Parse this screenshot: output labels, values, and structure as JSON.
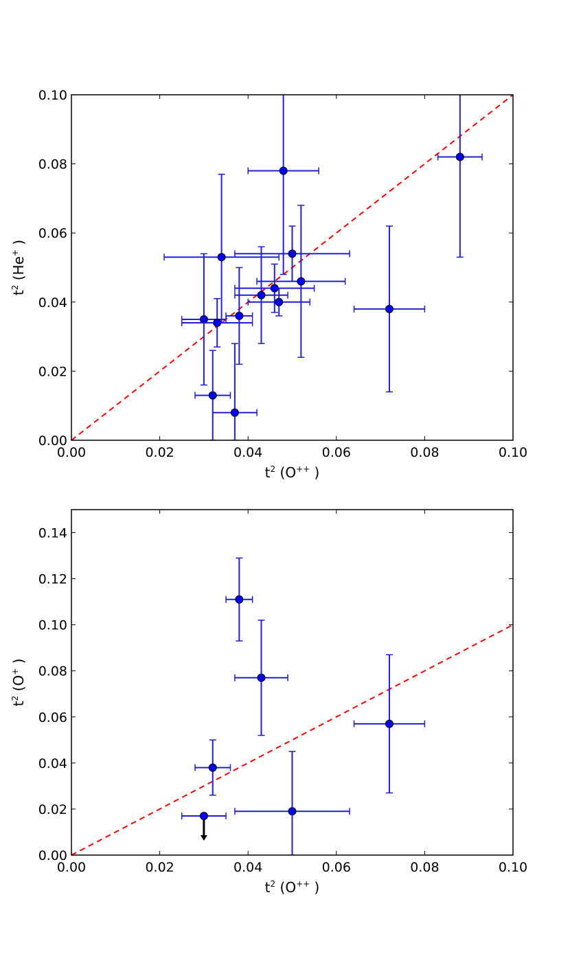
{
  "colors": {
    "points": "#0000ff",
    "errorbars": "#1f1fd6",
    "one_to_one": "#ff0000",
    "upper_limit": "#000000"
  },
  "chart_data": [
    {
      "type": "scatter",
      "xlabel": {
        "base": "t",
        "exp": "2",
        "species": "O",
        "charge": "++"
      },
      "ylabel": {
        "base": "t",
        "exp": "2",
        "species": "He",
        "charge": "+"
      },
      "xlim": [
        0.0,
        0.1
      ],
      "ylim": [
        0.0,
        0.1
      ],
      "xticks": [
        "0.00",
        "0.02",
        "0.04",
        "0.06",
        "0.08",
        "0.10"
      ],
      "yticks": [
        "0.00",
        "0.02",
        "0.04",
        "0.06",
        "0.08",
        "0.10"
      ],
      "reference_line": {
        "style": "dashed",
        "slope": 1,
        "intercept": 0
      },
      "points": [
        {
          "x": 0.03,
          "y": 0.035,
          "xerr": [
            0.005,
            0.005
          ],
          "yerr": [
            0.019,
            0.019
          ]
        },
        {
          "x": 0.032,
          "y": 0.013,
          "xerr": [
            0.004,
            0.004
          ],
          "yerr": [
            0.013,
            0.013
          ]
        },
        {
          "x": 0.033,
          "y": 0.034,
          "xerr": [
            0.008,
            0.008
          ],
          "yerr": [
            0.007,
            0.007
          ]
        },
        {
          "x": 0.034,
          "y": 0.053,
          "xerr": [
            0.013,
            0.013
          ],
          "yerr": [
            0.019,
            0.024
          ]
        },
        {
          "x": 0.037,
          "y": 0.008,
          "xerr": [
            0.005,
            0.005
          ],
          "yerr": [
            0.008,
            0.02
          ]
        },
        {
          "x": 0.038,
          "y": 0.036,
          "xerr": [
            0.003,
            0.003
          ],
          "yerr": [
            0.014,
            0.014
          ]
        },
        {
          "x": 0.043,
          "y": 0.042,
          "xerr": [
            0.006,
            0.006
          ],
          "yerr": [
            0.014,
            0.014
          ]
        },
        {
          "x": 0.046,
          "y": 0.044,
          "xerr": [
            0.009,
            0.009
          ],
          "yerr": [
            0.007,
            0.007
          ]
        },
        {
          "x": 0.047,
          "y": 0.04,
          "xerr": [
            0.007,
            0.007
          ],
          "yerr": [
            0.004,
            0.004
          ]
        },
        {
          "x": 0.048,
          "y": 0.078,
          "xerr": [
            0.008,
            0.008
          ],
          "yerr": [
            0.03,
            0.03
          ]
        },
        {
          "x": 0.05,
          "y": 0.054,
          "xerr": [
            0.013,
            0.013
          ],
          "yerr": [
            0.008,
            0.008
          ]
        },
        {
          "x": 0.052,
          "y": 0.046,
          "xerr": [
            0.01,
            0.01
          ],
          "yerr": [
            0.022,
            0.022
          ]
        },
        {
          "x": 0.072,
          "y": 0.038,
          "xerr": [
            0.008,
            0.008
          ],
          "yerr": [
            0.024,
            0.024
          ]
        },
        {
          "x": 0.088,
          "y": 0.082,
          "xerr": [
            0.005,
            0.005
          ],
          "yerr": [
            0.029,
            0.029
          ]
        }
      ]
    },
    {
      "type": "scatter",
      "xlabel": {
        "base": "t",
        "exp": "2",
        "species": "O",
        "charge": "++"
      },
      "ylabel": {
        "base": "t",
        "exp": "2",
        "species": "O",
        "charge": "+"
      },
      "xlim": [
        0.0,
        0.1
      ],
      "ylim": [
        0.0,
        0.15
      ],
      "xticks": [
        "0.00",
        "0.02",
        "0.04",
        "0.06",
        "0.08",
        "0.10"
      ],
      "yticks": [
        "0.00",
        "0.02",
        "0.04",
        "0.06",
        "0.08",
        "0.10",
        "0.12",
        "0.14"
      ],
      "reference_line": {
        "style": "dashed",
        "slope": 1,
        "intercept": 0
      },
      "points": [
        {
          "x": 0.03,
          "y": 0.017,
          "xerr": [
            0.005,
            0.005
          ],
          "yerr": null,
          "upper_limit": true
        },
        {
          "x": 0.032,
          "y": 0.038,
          "xerr": [
            0.004,
            0.004
          ],
          "yerr": [
            0.012,
            0.012
          ]
        },
        {
          "x": 0.038,
          "y": 0.111,
          "xerr": [
            0.003,
            0.003
          ],
          "yerr": [
            0.018,
            0.018
          ]
        },
        {
          "x": 0.043,
          "y": 0.077,
          "xerr": [
            0.006,
            0.006
          ],
          "yerr": [
            0.025,
            0.025
          ]
        },
        {
          "x": 0.05,
          "y": 0.019,
          "xerr": [
            0.013,
            0.013
          ],
          "yerr": [
            0.019,
            0.026
          ]
        },
        {
          "x": 0.072,
          "y": 0.057,
          "xerr": [
            0.008,
            0.008
          ],
          "yerr": [
            0.03,
            0.03
          ]
        }
      ]
    }
  ]
}
